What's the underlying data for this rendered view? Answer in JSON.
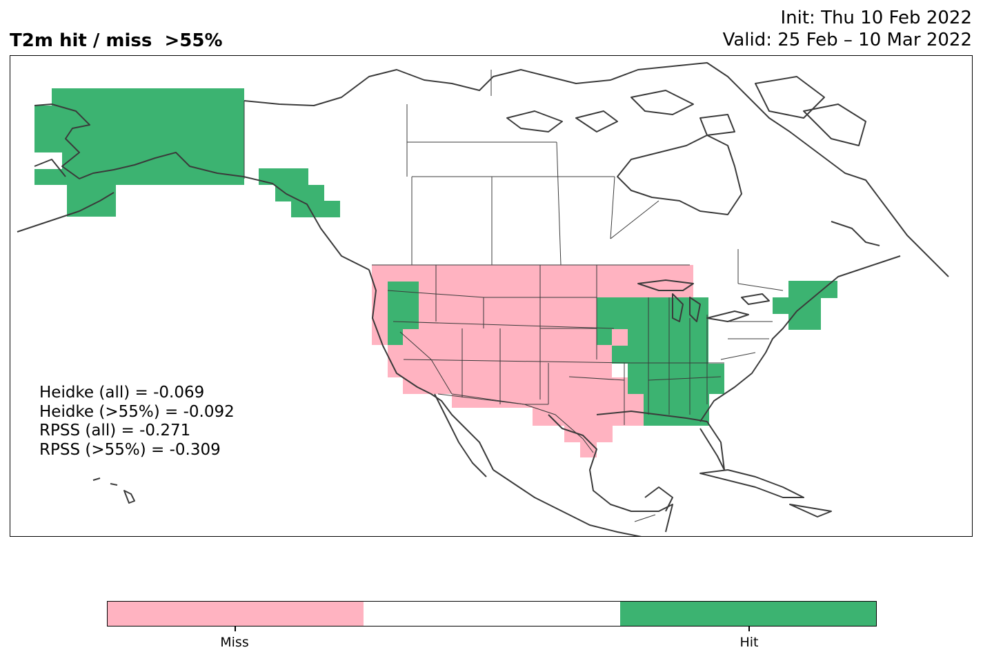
{
  "title": {
    "left": "T2m hit / miss  >55%",
    "init": "Init: Thu 10 Feb 2022",
    "valid": "Valid: 25 Feb – 10 Mar 2022"
  },
  "stats": [
    "Heidke (all) = -0.069",
    "Heidke (>55%) = -0.092",
    "RPSS (all) = -0.271",
    "RPSS (>55%) = -0.309"
  ],
  "legend": {
    "categories": [
      {
        "label": "Miss",
        "color": "#ffb3c1"
      },
      {
        "label": "",
        "color": "#ffffff"
      },
      {
        "label": "Hit",
        "color": "#3cb371"
      }
    ]
  },
  "colors": {
    "miss": "#ffb3c1",
    "hit": "#3cb371",
    "coastline": "#3a3a3a",
    "border": "#3a3a3a"
  },
  "regions": {
    "hit": [
      "Alaska",
      "Southeast Alaska panhandle",
      "Pacific Northwest (interior)",
      "Upper Midwest",
      "Ohio Valley",
      "Southeast US",
      "New England"
    ],
    "miss": [
      "Northern Plains",
      "Rocky Mountains",
      "Great Basin",
      "California",
      "Southwest",
      "Texas",
      "Southern Plains"
    ]
  }
}
